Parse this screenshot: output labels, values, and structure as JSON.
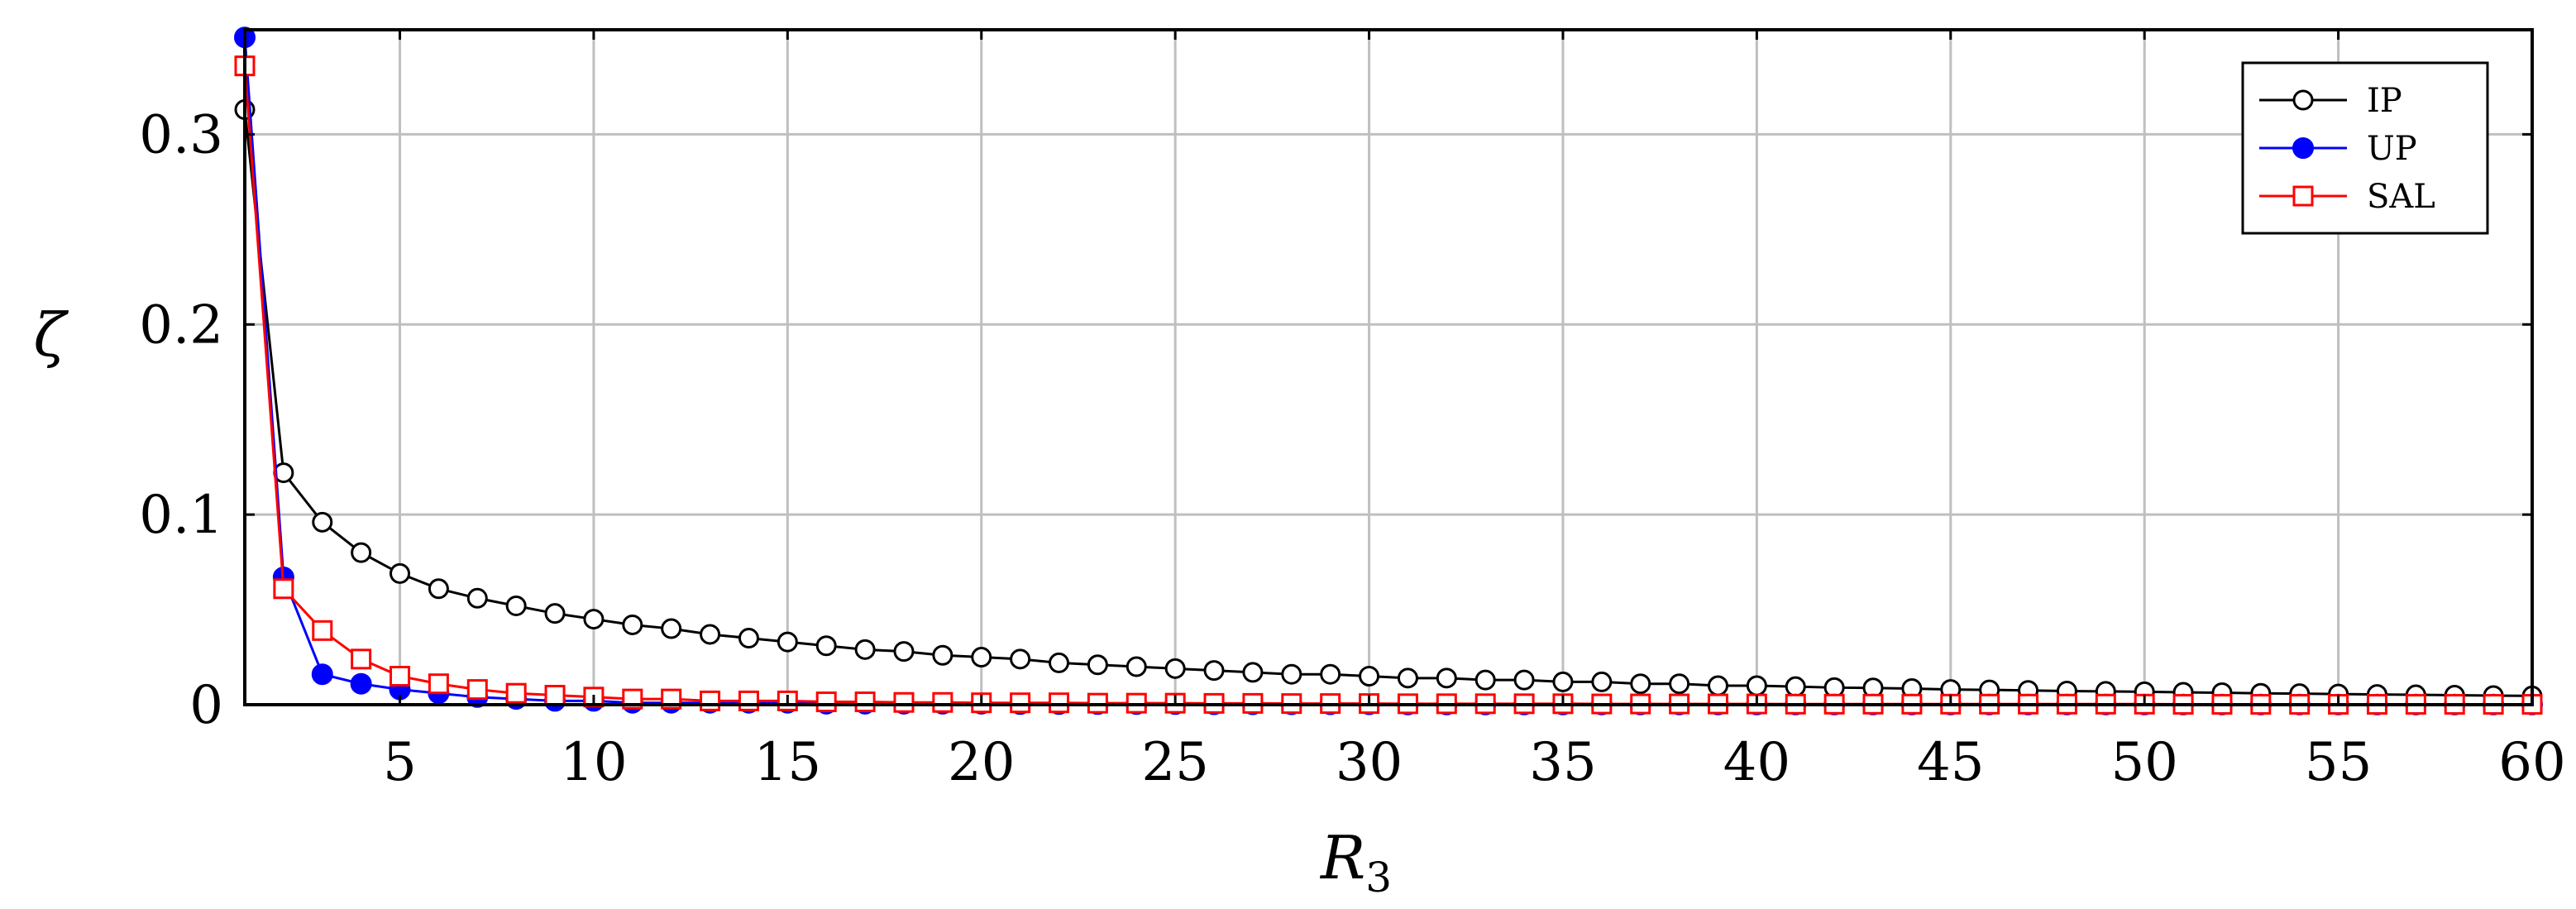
{
  "chart_data": {
    "type": "line",
    "xlabel": "R",
    "xlabel_sub": "3",
    "ylabel": "ζ",
    "xlim": [
      1,
      60
    ],
    "ylim": [
      0,
      0.355
    ],
    "grid": true,
    "legend_position": "top-right",
    "x_ticks": [
      5,
      10,
      15,
      20,
      25,
      30,
      35,
      40,
      45,
      50,
      55,
      60
    ],
    "y_ticks": [
      0,
      0.1,
      0.2,
      0.3
    ],
    "x_tick_labels": [
      "5",
      "10",
      "15",
      "20",
      "25",
      "30",
      "35",
      "40",
      "45",
      "50",
      "55",
      "60"
    ],
    "y_tick_labels": [
      "0",
      "0.1",
      "0.2",
      "0.3"
    ],
    "series": [
      {
        "name": "IP",
        "color": "#000000",
        "marker": "open-circle",
        "x": [
          1,
          2,
          3,
          4,
          5,
          6,
          7,
          8,
          9,
          10,
          11,
          12,
          13,
          14,
          15,
          16,
          17,
          18,
          19,
          20,
          21,
          22,
          23,
          24,
          25,
          26,
          27,
          28,
          29,
          30,
          31,
          32,
          33,
          34,
          35,
          36,
          37,
          38,
          39,
          40,
          41,
          42,
          43,
          44,
          45,
          46,
          47,
          48,
          49,
          50,
          51,
          52,
          53,
          54,
          55,
          56,
          57,
          58,
          59,
          60
        ],
        "values": [
          0.313,
          0.122,
          0.096,
          0.08,
          0.069,
          0.061,
          0.056,
          0.052,
          0.048,
          0.045,
          0.042,
          0.04,
          0.037,
          0.035,
          0.033,
          0.031,
          0.029,
          0.028,
          0.026,
          0.025,
          0.024,
          0.022,
          0.021,
          0.02,
          0.019,
          0.018,
          0.017,
          0.016,
          0.016,
          0.015,
          0.014,
          0.014,
          0.013,
          0.013,
          0.012,
          0.012,
          0.011,
          0.011,
          0.01,
          0.01,
          0.0095,
          0.009,
          0.0088,
          0.0085,
          0.008,
          0.0078,
          0.0075,
          0.0072,
          0.007,
          0.0068,
          0.0065,
          0.0063,
          0.006,
          0.0058,
          0.0056,
          0.0054,
          0.0052,
          0.005,
          0.0048,
          0.0046
        ]
      },
      {
        "name": "UP",
        "color": "#0000ff",
        "marker": "filled-circle",
        "x": [
          1,
          2,
          3,
          4,
          5,
          6,
          7,
          8,
          9,
          10,
          11,
          12,
          13,
          14,
          15,
          16,
          17,
          18,
          19,
          20,
          21,
          22,
          23,
          24,
          25,
          26,
          27,
          28,
          29,
          30,
          31,
          32,
          33,
          34,
          35,
          36,
          37,
          38,
          39,
          40,
          41,
          42,
          43,
          44,
          45,
          46,
          47,
          48,
          49,
          50,
          51,
          52,
          53,
          54,
          55,
          56,
          57,
          58,
          59,
          60
        ],
        "values": [
          0.351,
          0.067,
          0.016,
          0.011,
          0.008,
          0.006,
          0.004,
          0.003,
          0.002,
          0.002,
          0.001,
          0.001,
          0.001,
          0.001,
          0.001,
          0.0005,
          0.0005,
          0.0005,
          0.0005,
          0.0005,
          0.0003,
          0.0003,
          0.0003,
          0.0003,
          0.0003,
          0.0002,
          0.0002,
          0.0002,
          0.0002,
          0.0002,
          0.0001,
          0.0001,
          0.0001,
          0.0001,
          0.0001,
          0.0001,
          0.0001,
          0.0001,
          0.0001,
          0.0001,
          0.0001,
          0.0001,
          0.0001,
          0.0001,
          0.0001,
          0.0001,
          0.0001,
          0.0001,
          0.0001,
          0.0001,
          0.0001,
          0.0001,
          0.0001,
          0.0001,
          0.0001,
          0.0001,
          0.0001,
          0.0001,
          0.0001,
          0.0001
        ]
      },
      {
        "name": "SAL",
        "color": "#ff0000",
        "marker": "open-square",
        "x": [
          1,
          2,
          3,
          4,
          5,
          6,
          7,
          8,
          9,
          10,
          11,
          12,
          13,
          14,
          15,
          16,
          17,
          18,
          19,
          20,
          21,
          22,
          23,
          24,
          25,
          26,
          27,
          28,
          29,
          30,
          31,
          32,
          33,
          34,
          35,
          36,
          37,
          38,
          39,
          40,
          41,
          42,
          43,
          44,
          45,
          46,
          47,
          48,
          49,
          50,
          51,
          52,
          53,
          54,
          55,
          56,
          57,
          58,
          59,
          60
        ],
        "values": [
          0.336,
          0.061,
          0.039,
          0.024,
          0.015,
          0.011,
          0.008,
          0.006,
          0.005,
          0.004,
          0.003,
          0.003,
          0.002,
          0.002,
          0.002,
          0.0015,
          0.0015,
          0.0012,
          0.0012,
          0.001,
          0.001,
          0.001,
          0.0008,
          0.0008,
          0.0008,
          0.0007,
          0.0007,
          0.0006,
          0.0006,
          0.0006,
          0.0005,
          0.0005,
          0.0005,
          0.0005,
          0.0005,
          0.0004,
          0.0004,
          0.0004,
          0.0004,
          0.0004,
          0.0003,
          0.0003,
          0.0003,
          0.0003,
          0.0003,
          0.0003,
          0.0003,
          0.0003,
          0.0003,
          0.0003,
          0.0002,
          0.0002,
          0.0002,
          0.0002,
          0.0002,
          0.0002,
          0.0002,
          0.0002,
          0.0002,
          0.0002
        ]
      }
    ]
  }
}
